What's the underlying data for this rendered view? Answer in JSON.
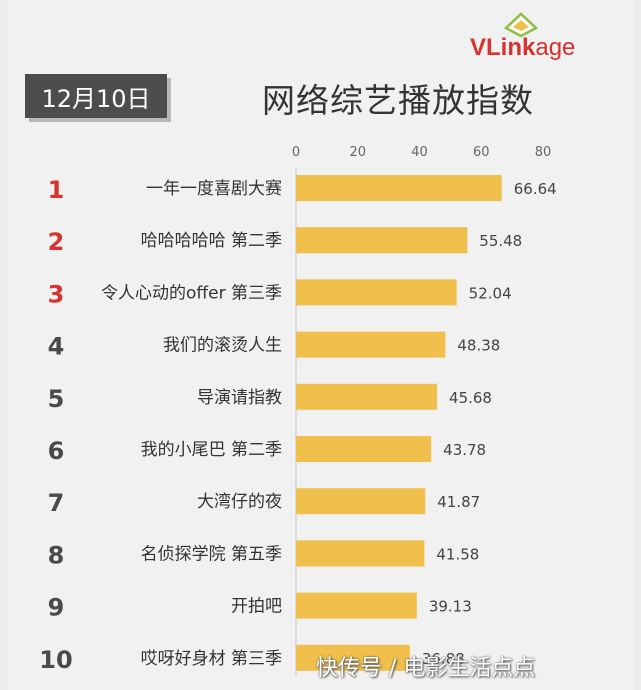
{
  "date_badge": "12月10日",
  "logo": {
    "bold": "VLink",
    "rest": "age"
  },
  "watermark": "快传号 / 电影生活点点",
  "colors": {
    "bar": "#f0bf4c",
    "rank_top": "#d8312e",
    "rank_other": "#4a4a4a",
    "badge_bg": "#4d4d4d"
  },
  "chart_data": {
    "type": "bar",
    "orientation": "horizontal",
    "title": "网络综艺播放指数",
    "xlim": [
      0,
      80
    ],
    "x_ticks": [
      0,
      20,
      40,
      60,
      80
    ],
    "ranks": [
      "1",
      "2",
      "3",
      "4",
      "5",
      "6",
      "7",
      "8",
      "9",
      "10"
    ],
    "categories": [
      "一年一度喜剧大赛",
      "哈哈哈哈哈 第二季",
      "令人心动的offer 第三季",
      "我们的滚烫人生",
      "导演请指教",
      "我的小尾巴 第二季",
      "大湾仔的夜",
      "名侦探学院 第五季",
      "开拍吧",
      "哎呀好身材 第三季"
    ],
    "values": [
      66.64,
      55.48,
      52.04,
      48.38,
      45.68,
      43.78,
      41.87,
      41.58,
      39.13,
      36.88
    ],
    "value_labels": [
      "66.64",
      "55.48",
      "52.04",
      "48.38",
      "45.68",
      "43.78",
      "41.87",
      "41.58",
      "39.13",
      "36.88"
    ]
  }
}
